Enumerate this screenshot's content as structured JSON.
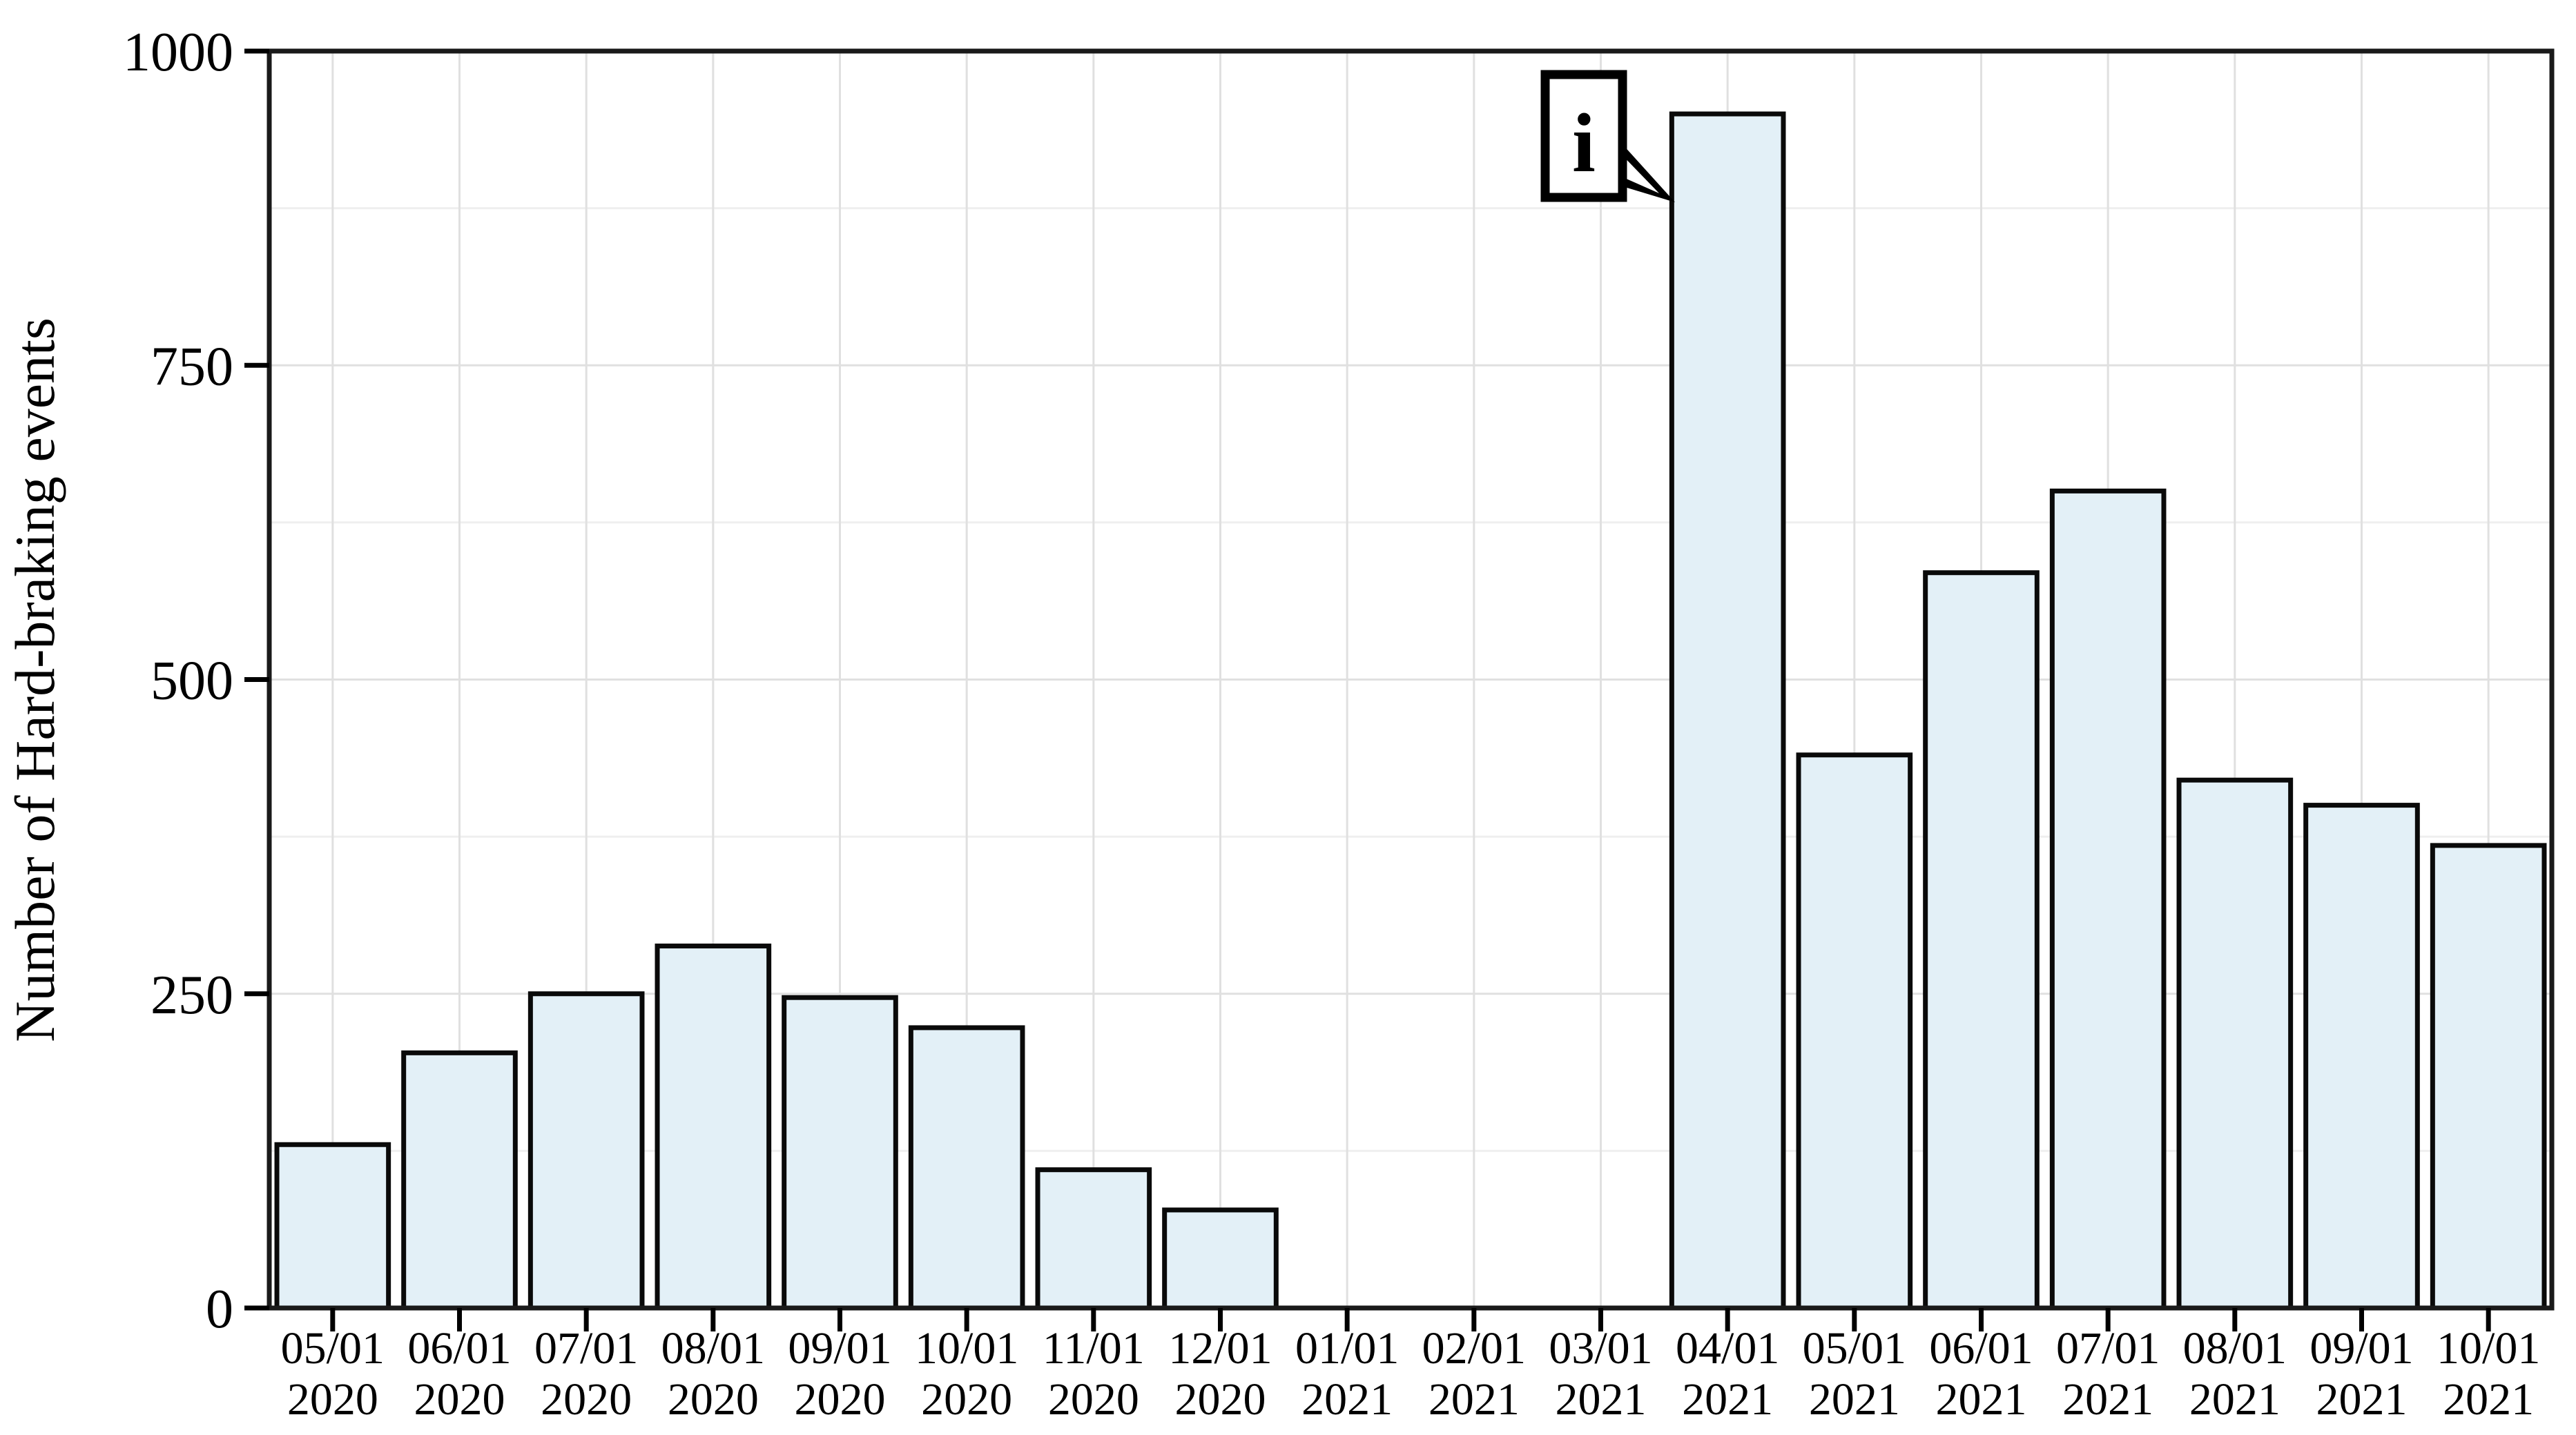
{
  "chart_data": {
    "type": "bar",
    "title": "",
    "xlabel": "",
    "ylabel": "Number of Hard-braking events",
    "ylim": [
      0,
      1000
    ],
    "yticks": [
      0,
      250,
      500,
      750,
      1000
    ],
    "minor_yticks": [
      125,
      375,
      625,
      875
    ],
    "grid": "on",
    "legend": "none",
    "categories": [
      {
        "date": "05/01",
        "year": "2020"
      },
      {
        "date": "06/01",
        "year": "2020"
      },
      {
        "date": "07/01",
        "year": "2020"
      },
      {
        "date": "08/01",
        "year": "2020"
      },
      {
        "date": "09/01",
        "year": "2020"
      },
      {
        "date": "10/01",
        "year": "2020"
      },
      {
        "date": "11/01",
        "year": "2020"
      },
      {
        "date": "12/01",
        "year": "2020"
      },
      {
        "date": "01/01",
        "year": "2021"
      },
      {
        "date": "02/01",
        "year": "2021"
      },
      {
        "date": "03/01",
        "year": "2021"
      },
      {
        "date": "04/01",
        "year": "2021"
      },
      {
        "date": "05/01",
        "year": "2021"
      },
      {
        "date": "06/01",
        "year": "2021"
      },
      {
        "date": "07/01",
        "year": "2021"
      },
      {
        "date": "08/01",
        "year": "2021"
      },
      {
        "date": "09/01",
        "year": "2021"
      },
      {
        "date": "10/01",
        "year": "2021"
      }
    ],
    "values": [
      130,
      203,
      250,
      288,
      247,
      223,
      110,
      78,
      0,
      0,
      0,
      950,
      440,
      585,
      650,
      420,
      400,
      368
    ],
    "annotation": {
      "text": "i",
      "target_category": "04/01 2021"
    },
    "colors": {
      "bar_fill": "#e3f0f7",
      "bar_stroke": "#0a0a0a",
      "grid_major": "#e0e0e0",
      "grid_minor": "#efefef",
      "panel_border": "#1a1a1a",
      "text": "#000000",
      "background": "#ffffff"
    }
  }
}
